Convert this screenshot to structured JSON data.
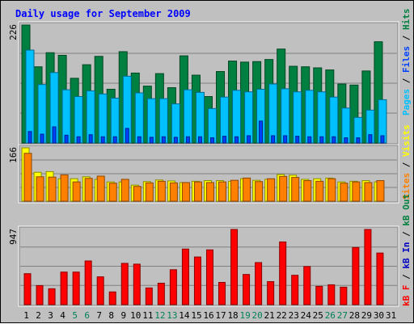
{
  "chart_data": {
    "type": "bar",
    "title": "Daily usage for September 2009",
    "categories": [
      "1",
      "2",
      "3",
      "4",
      "5",
      "6",
      "7",
      "8",
      "9",
      "10",
      "11",
      "12",
      "13",
      "14",
      "15",
      "16",
      "17",
      "18",
      "19",
      "20",
      "21",
      "22",
      "23",
      "24",
      "25",
      "26",
      "27",
      "28",
      "29",
      "30",
      "31"
    ],
    "weekend_days": [
      "5",
      "6",
      "12",
      "13",
      "19",
      "20",
      "26",
      "27"
    ],
    "panels": [
      {
        "id": "hits",
        "ymax_label": "226",
        "ymax": 226,
        "right_label_parts": [
          {
            "text": "Pages",
            "color": "#00c0ff"
          },
          {
            "text": " / ",
            "color": "#000000"
          },
          {
            "text": "Files",
            "color": "#0040ff"
          },
          {
            "text": " / ",
            "color": "#000000"
          },
          {
            "text": "Hits",
            "color": "#008040"
          }
        ],
        "series": [
          {
            "name": "Hits",
            "color": "#008040",
            "values": [
              226,
              146,
              173,
              168,
              124,
              150,
              166,
              103,
              175,
              134,
              109,
              133,
              106,
              167,
              130,
              89,
              137,
              157,
              155,
              156,
              160,
              180,
              147,
              146,
              144,
              140,
              113,
              111,
              138,
              194,
              null
            ]
          },
          {
            "name": "Files",
            "color": "#00c0ff",
            "values": [
              178,
              112,
              135,
              102,
              89,
              100,
              94,
              86,
              128,
              96,
              85,
              85,
              75,
              102,
              97,
              66,
              88,
              101,
              98,
              103,
              113,
              104,
              98,
              101,
              98,
              88,
              67,
              49,
              63,
              83,
              null
            ]
          },
          {
            "name": "Pages",
            "color": "#0040ff",
            "values": [
              22,
              17,
              31,
              15,
              12,
              16,
              12,
              12,
              28,
              12,
              11,
              12,
              11,
              12,
              12,
              10,
              13,
              12,
              14,
              42,
              14,
              14,
              13,
              12,
              12,
              12,
              10,
              10,
              16,
              14,
              null
            ]
          }
        ]
      },
      {
        "id": "visits",
        "ymax_label": "166",
        "ymax": 166,
        "right_label_parts": [
          {
            "text": "Sites",
            "color": "#ff8000"
          },
          {
            "text": " / ",
            "color": "#000000"
          },
          {
            "text": "Visits",
            "color": "#ffff00"
          }
        ],
        "series": [
          {
            "name": "Visits",
            "color": "#ffff00",
            "values": [
              166,
              90,
              92,
              70,
              70,
              76,
              68,
              60,
              60,
              50,
              61,
              66,
              63,
              58,
              62,
              64,
              64,
              62,
              70,
              65,
              68,
              83,
              81,
              68,
              70,
              72,
              60,
              62,
              64,
              60,
              null
            ]
          },
          {
            "name": "Sites",
            "color": "#ff8000",
            "values": [
              149,
              76,
              75,
              82,
              60,
              71,
              78,
              56,
              68,
              46,
              57,
              62,
              57,
              58,
              60,
              58,
              60,
              65,
              72,
              61,
              70,
              77,
              74,
              64,
              62,
              70,
              56,
              60,
              58,
              64,
              null
            ]
          }
        ]
      },
      {
        "id": "kbytes",
        "ymax_label": "947",
        "ymax": 947,
        "right_label_parts": [
          {
            "text": "kB F",
            "color": "#ff0000"
          },
          {
            "text": " / ",
            "color": "#000000"
          },
          {
            "text": "kB In",
            "color": "#0000c0"
          },
          {
            "text": " / ",
            "color": "#000000"
          },
          {
            "text": "kB Out",
            "color": "#008040"
          }
        ],
        "series": [
          {
            "name": "kB F",
            "color": "#ff0000",
            "values": [
              390,
              240,
              200,
              410,
              410,
              550,
              350,
              160,
              520,
              510,
              210,
              270,
              440,
              700,
              600,
              690,
              280,
              947,
              380,
              530,
              290,
              790,
              370,
              480,
              230,
              250,
              220,
              720,
              947,
              650,
              null
            ]
          }
        ]
      }
    ]
  }
}
